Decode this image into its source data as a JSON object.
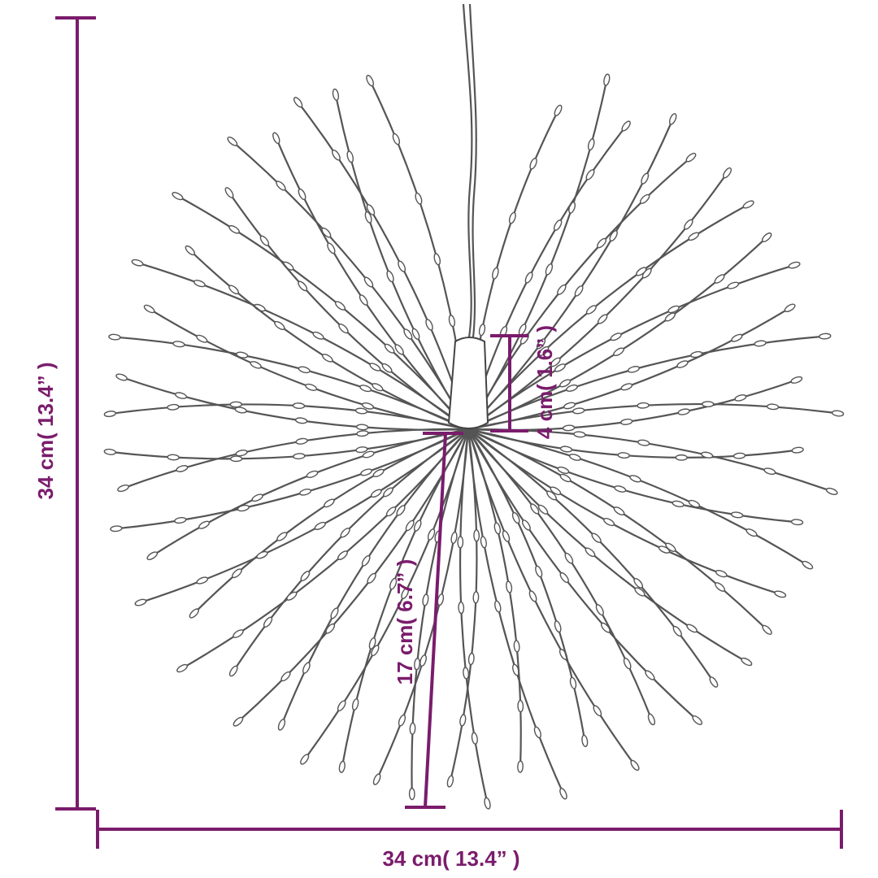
{
  "dimensions": {
    "height": "34 cm( 13.4” )",
    "width": "34 cm( 13.4” )",
    "hub_height": "4 cm( 1.6” )",
    "strand_length": "17 cm( 6.7” )"
  }
}
